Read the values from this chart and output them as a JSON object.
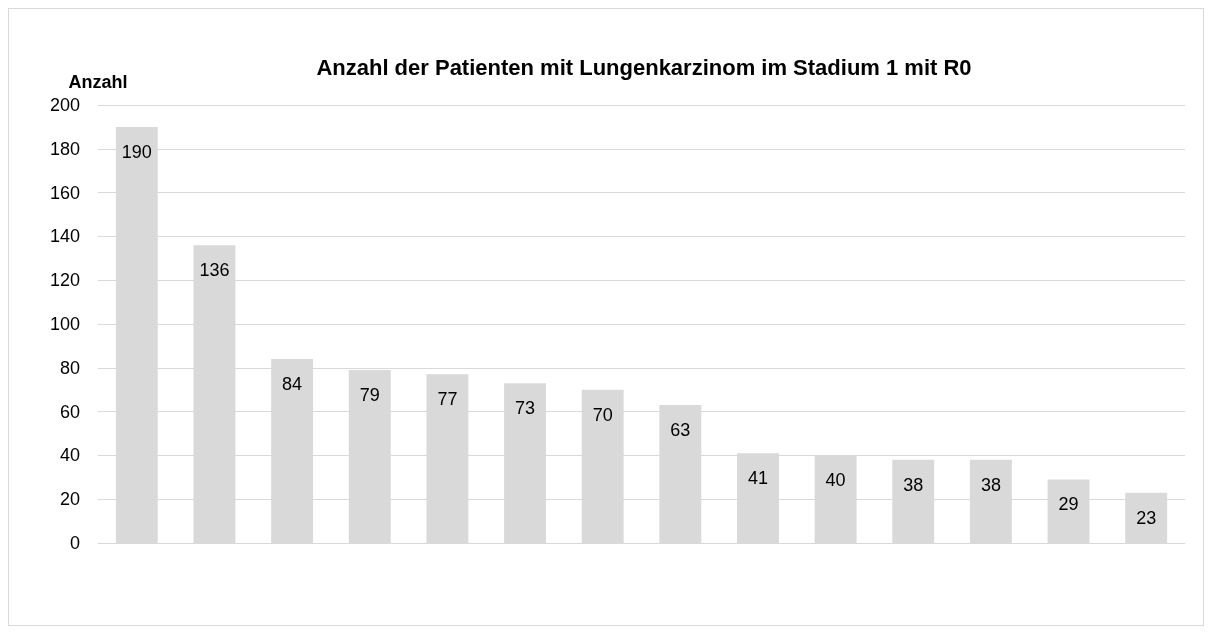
{
  "chart_data": {
    "type": "bar",
    "title": "Anzahl der Patienten mit Lungenkarzinom im Stadium 1 mit R0",
    "ylabel": "Anzahl",
    "categories": [
      null,
      null,
      null,
      null,
      null,
      null,
      null,
      null,
      null,
      null,
      null,
      null,
      null,
      null
    ],
    "values": [
      190,
      136,
      84,
      79,
      77,
      73,
      70,
      63,
      41,
      40,
      38,
      38,
      29,
      23
    ],
    "color": "#d9d9d9",
    "ylim": [
      0,
      200
    ],
    "yticks": [
      0,
      20,
      40,
      60,
      80,
      100,
      120,
      140,
      160,
      180,
      200
    ],
    "grid": "y",
    "data_labels": true
  }
}
